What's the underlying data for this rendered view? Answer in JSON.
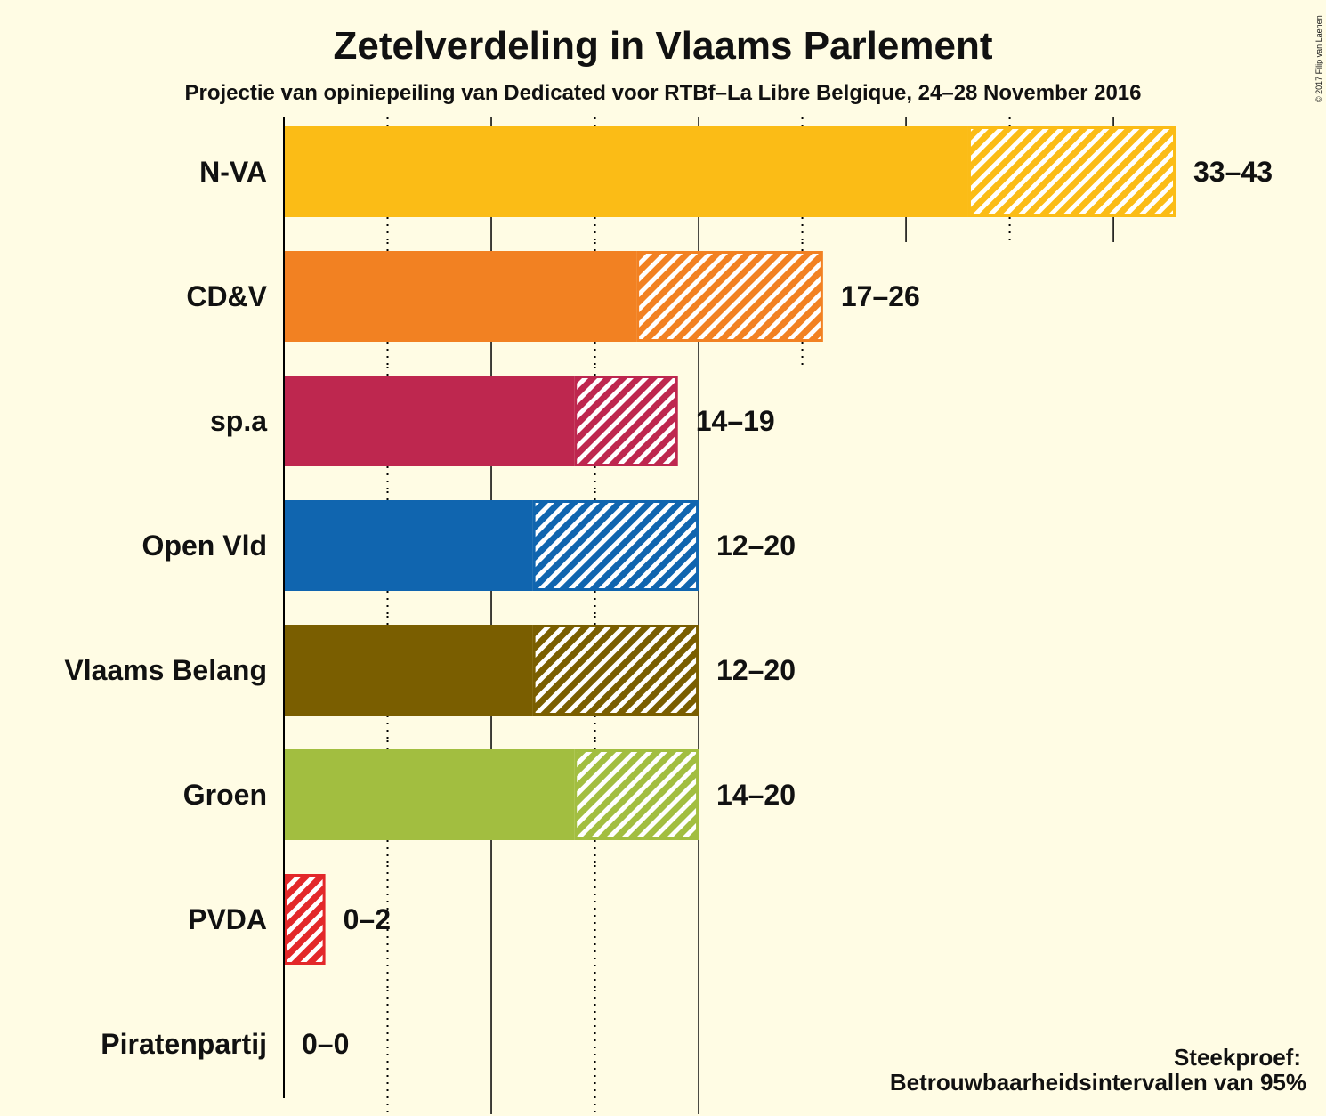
{
  "chart_data": {
    "type": "bar",
    "orientation": "horizontal",
    "title": "Zetelverdeling in Vlaams Parlement",
    "subtitle": "Projectie van opiniepeiling van Dedicated voor RTBf–La Libre Belgique, 24–28 November 2016",
    "xlim": [
      0,
      43
    ],
    "grid": "vertical, every 5 seats (dotted at odd multiples)",
    "parties": [
      {
        "name": "N-VA",
        "low": 33,
        "high": 43,
        "range_label": "33–43",
        "color": "#FBBC16"
      },
      {
        "name": "CD&V",
        "low": 17,
        "high": 26,
        "range_label": "17–26",
        "color": "#F28122"
      },
      {
        "name": "sp.a",
        "low": 14,
        "high": 19,
        "range_label": "14–19",
        "color": "#BE274F"
      },
      {
        "name": "Open Vld",
        "low": 12,
        "high": 20,
        "range_label": "12–20",
        "color": "#1065AF"
      },
      {
        "name": "Vlaams Belang",
        "low": 12,
        "high": 20,
        "range_label": "12–20",
        "color": "#7A5E00"
      },
      {
        "name": "Groen",
        "low": 14,
        "high": 20,
        "range_label": "14–20",
        "color": "#A2BE40"
      },
      {
        "name": "PVDA",
        "low": 0,
        "high": 2,
        "range_label": "0–2",
        "color": "#E3282A"
      },
      {
        "name": "Piratenpartij",
        "low": 0,
        "high": 0,
        "range_label": "0–0",
        "color": "#000000"
      }
    ]
  },
  "legend": {
    "line1": "Steekproef:",
    "line2": "Betrouwbaarheidsintervallen van 95%"
  },
  "copyright": "© 2017 Filip van Laenen"
}
